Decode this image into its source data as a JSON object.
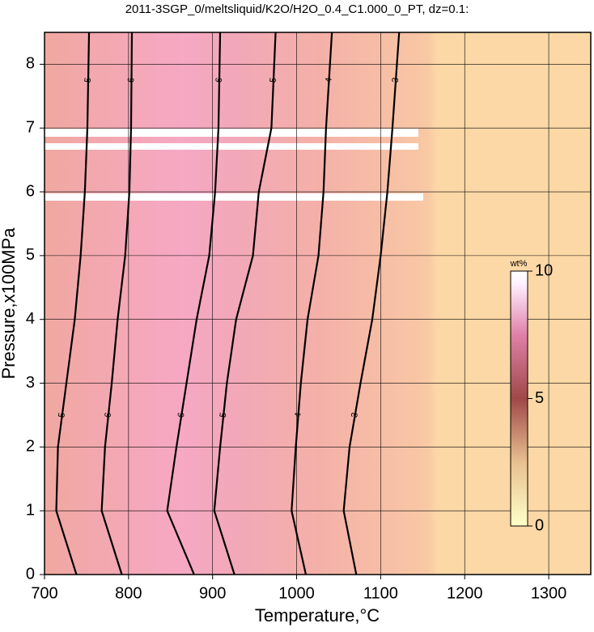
{
  "chart_data": {
    "type": "contour",
    "title": "2011-3SGP_0/meltsliquid/K2O/H2O_0.4_C1.000_0_PT, dz=0.1:",
    "x_label": "Temperature,°C",
    "y_label": "Pressure,x100MPa",
    "xlim": [
      700,
      1350
    ],
    "xticks": [
      700,
      800,
      900,
      1000,
      1100,
      1200,
      1300
    ],
    "ylim": [
      0,
      8.5
    ],
    "yticks": [
      0,
      1,
      2,
      3,
      4,
      5,
      6,
      7,
      8
    ],
    "grid": true,
    "contours": [
      {
        "level": 5,
        "x": [
          738,
          714,
          716,
          726,
          736,
          743,
          748,
          751,
          753
        ],
        "y": [
          0,
          1,
          2,
          3,
          4,
          5,
          6,
          7,
          8.5
        ]
      },
      {
        "level": 6,
        "x": [
          792,
          768,
          772,
          780,
          787,
          796,
          801,
          803,
          804
        ],
        "y": [
          0,
          1,
          2,
          3,
          4,
          5,
          6,
          7,
          8.5
        ]
      },
      {
        "level": 6,
        "x": [
          878,
          846,
          857,
          869,
          881,
          896,
          903,
          907,
          909
        ],
        "y": [
          0,
          1,
          2,
          3,
          4,
          5,
          6,
          7,
          8.5
        ]
      },
      {
        "level": 5,
        "x": [
          926,
          902,
          909,
          917,
          928,
          948,
          955,
          970,
          975
        ],
        "y": [
          0,
          1,
          2,
          3,
          4,
          5,
          6,
          7,
          8.5
        ]
      },
      {
        "level": 4,
        "x": [
          1011,
          994,
          999,
          1005,
          1013,
          1026,
          1032,
          1035,
          1042
        ],
        "y": [
          0,
          1,
          2,
          3,
          4,
          5,
          6,
          7,
          8.5
        ]
      },
      {
        "level": 3,
        "x": [
          1071,
          1056,
          1063,
          1076,
          1090,
          1100,
          1108,
          1114,
          1122
        ],
        "y": [
          0,
          1,
          2,
          3,
          4,
          5,
          6,
          7,
          8.5
        ]
      }
    ],
    "colorbar": {
      "label": "wt%",
      "lim": [
        0,
        10
      ],
      "ticks": [
        0,
        5,
        10
      ]
    }
  }
}
